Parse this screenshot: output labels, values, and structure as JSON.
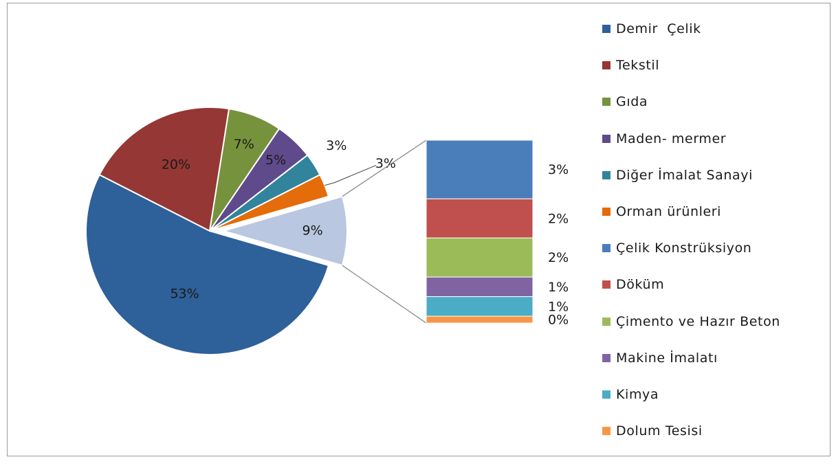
{
  "chart_data": [
    {
      "type": "pie",
      "slices": [
        {
          "label": "Demir  Çelik",
          "value": 53,
          "data_label": "53%",
          "color": "#2e6099"
        },
        {
          "label": "Tekstil",
          "value": 20,
          "data_label": "20%",
          "color": "#953735"
        },
        {
          "label": "Gıda",
          "value": 7,
          "data_label": "7%",
          "color": "#76923c"
        },
        {
          "label": "Maden- mermer",
          "value": 5,
          "data_label": "5%",
          "color": "#5f4a8b"
        },
        {
          "label": "Diğer İmalat Sanayi",
          "value": 3,
          "data_label": "3%",
          "color": "#31849b"
        },
        {
          "label": "Orman ürünleri",
          "value": 3,
          "data_label": "3%",
          "color": "#e46c0a"
        },
        {
          "label": "",
          "value": 9,
          "data_label": "9%",
          "color": "#b9c7e0"
        }
      ]
    },
    {
      "type": "bar",
      "stacked": true,
      "categories": [
        "Çelik Konstrüksiyon",
        "Döküm",
        "Çimento ve Hazır Beton",
        "Makine İmalatı",
        "Kimya",
        "Dolum Tesisi"
      ],
      "values": [
        3,
        2,
        2,
        1,
        1,
        0
      ],
      "data_labels": [
        "3%",
        "2%",
        "2%",
        "1%",
        "1%",
        "0%"
      ],
      "colors": [
        "#4a7ebb",
        "#c0504d",
        "#9bbb59",
        "#8064a2",
        "#4bacc6",
        "#f79646"
      ]
    }
  ],
  "legend": [
    {
      "label": "Demir  Çelik",
      "color": "#2e6099"
    },
    {
      "label": "Tekstil",
      "color": "#953735"
    },
    {
      "label": "Gıda",
      "color": "#76923c"
    },
    {
      "label": "Maden- mermer",
      "color": "#5f4a8b"
    },
    {
      "label": "Diğer İmalat Sanayi",
      "color": "#31849b"
    },
    {
      "label": "Orman ürünleri",
      "color": "#e46c0a"
    },
    {
      "label": "Çelik Konstrüksiyon",
      "color": "#4a7ebb"
    },
    {
      "label": "Döküm",
      "color": "#c0504d"
    },
    {
      "label": "Çimento ve Hazır Beton",
      "color": "#9bbb59"
    },
    {
      "label": "Makine İmalatı",
      "color": "#8064a2"
    },
    {
      "label": "Kimya",
      "color": "#4bacc6"
    },
    {
      "label": "Dolum Tesisi",
      "color": "#f79646"
    }
  ]
}
